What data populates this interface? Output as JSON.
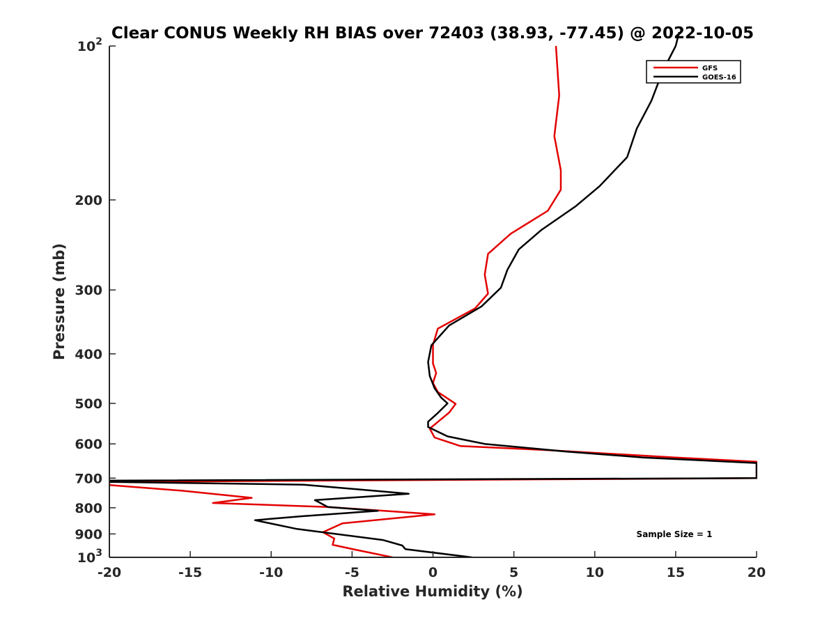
{
  "chart_data": {
    "type": "line",
    "title": "Clear CONUS Weekly RH BIAS over 72403 (38.93, -77.45) @ 2022-10-05",
    "xlabel": "Relative Humidity (%)",
    "ylabel": "Pressure (mb)",
    "xlim": [
      -20,
      20
    ],
    "ylim": [
      100,
      1000
    ],
    "y_scale": "log",
    "y_reversed": true,
    "grid": false,
    "legend_position": "top-right",
    "x_ticks": [
      "-20",
      "-15",
      "-10",
      "-5",
      "0",
      "5",
      "10",
      "15",
      "20"
    ],
    "y_ticks": [
      {
        "value": 100,
        "base": "10",
        "exp": "2"
      },
      {
        "value": 200,
        "label": "200"
      },
      {
        "value": 300,
        "label": "300"
      },
      {
        "value": 400,
        "label": "400"
      },
      {
        "value": 500,
        "label": "500"
      },
      {
        "value": 600,
        "label": "600"
      },
      {
        "value": 700,
        "label": "700"
      },
      {
        "value": 800,
        "label": "800"
      },
      {
        "value": 900,
        "label": "900"
      },
      {
        "value": 1000,
        "base": "10",
        "exp": "3"
      }
    ],
    "annotation": "Sample Size = 1",
    "series": [
      {
        "name": "GFS",
        "color": "#e30000",
        "points": [
          [
            7.6,
            100
          ],
          [
            7.8,
            125
          ],
          [
            7.5,
            150
          ],
          [
            7.9,
            175
          ],
          [
            7.9,
            191
          ],
          [
            7.1,
            210
          ],
          [
            4.8,
            233
          ],
          [
            3.4,
            255
          ],
          [
            3.2,
            280
          ],
          [
            3.4,
            305
          ],
          [
            2.6,
            326
          ],
          [
            0.3,
            357
          ],
          [
            0,
            384
          ],
          [
            0,
            418
          ],
          [
            0.2,
            436
          ],
          [
            0,
            456
          ],
          [
            0.3,
            475
          ],
          [
            1.4,
            501
          ],
          [
            1.0,
            521
          ],
          [
            -0.2,
            560
          ],
          [
            0.1,
            583
          ],
          [
            1.7,
            606
          ],
          [
            7.1,
            617
          ],
          [
            15,
            638
          ],
          [
            20,
            650
          ],
          [
            20,
            700
          ],
          [
            -20,
            712
          ],
          [
            -20,
            722
          ],
          [
            -15.5,
            741
          ],
          [
            -11.2,
            765
          ],
          [
            -13.6,
            783
          ],
          [
            -6.5,
            797
          ],
          [
            0.1,
            824
          ],
          [
            -5.6,
            858
          ],
          [
            -6.8,
            893
          ],
          [
            -6.1,
            919
          ],
          [
            -6.2,
            945
          ],
          [
            -4.8,
            966
          ],
          [
            -2.5,
            1000
          ]
        ]
      },
      {
        "name": "GOES-16",
        "color": "#000000",
        "points": [
          [
            15,
            100
          ],
          [
            14.2,
            112
          ],
          [
            13.5,
            128
          ],
          [
            12.6,
            145
          ],
          [
            12.0,
            165
          ],
          [
            10.3,
            188
          ],
          [
            8.8,
            206
          ],
          [
            6.7,
            229
          ],
          [
            5.3,
            250
          ],
          [
            4.6,
            274
          ],
          [
            4.2,
            297
          ],
          [
            3.0,
            323
          ],
          [
            1.0,
            352
          ],
          [
            -0.1,
            385
          ],
          [
            -0.3,
            415
          ],
          [
            -0.2,
            442
          ],
          [
            0.1,
            467
          ],
          [
            0.5,
            487
          ],
          [
            0.9,
            500
          ],
          [
            0.3,
            522
          ],
          [
            -0.3,
            543
          ],
          [
            -0.3,
            556
          ],
          [
            0.9,
            580
          ],
          [
            3.2,
            600
          ],
          [
            8.2,
            621
          ],
          [
            13,
            638
          ],
          [
            20,
            654
          ],
          [
            20,
            700
          ],
          [
            -20,
            708
          ],
          [
            -20,
            712
          ],
          [
            -8,
            721
          ],
          [
            -1.5,
            751
          ],
          [
            -7.3,
            773
          ],
          [
            -6.5,
            797
          ],
          [
            -3.4,
            811
          ],
          [
            -8.1,
            831
          ],
          [
            -11.0,
            846
          ],
          [
            -8.4,
            880
          ],
          [
            -3.1,
            925
          ],
          [
            -1.9,
            948
          ],
          [
            -1.7,
            964
          ],
          [
            2.4,
            1000
          ]
        ]
      }
    ]
  }
}
